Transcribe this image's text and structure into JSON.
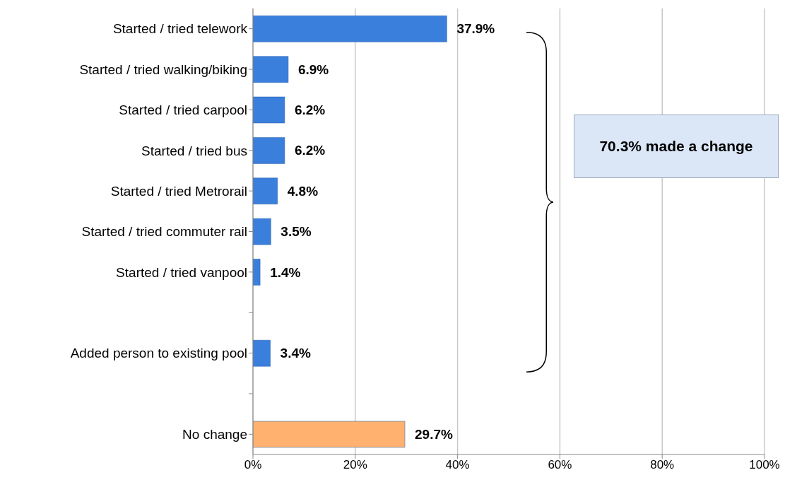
{
  "chart_data": {
    "type": "bar",
    "orientation": "horizontal",
    "categories": [
      "Started / tried telework",
      "Started / tried walking/biking",
      "Started / tried carpool",
      "Started / tried bus",
      "Started / tried Metrorail",
      "Started / tried commuter rail",
      "Started / tried vanpool",
      null,
      "Added person to existing pool",
      null,
      "No change"
    ],
    "values": [
      37.9,
      6.9,
      6.2,
      6.2,
      4.8,
      3.5,
      1.4,
      null,
      3.4,
      null,
      29.7
    ],
    "colors": [
      "#3a7fdc",
      "#3a7fdc",
      "#3a7fdc",
      "#3a7fdc",
      "#3a7fdc",
      "#3a7fdc",
      "#3a7fdc",
      "#3a7fdc",
      "#3a7fdc",
      "#3a7fdc",
      "#ffb26f"
    ],
    "value_labels": [
      "37.9%",
      "6.9%",
      "6.2%",
      "6.2%",
      "4.8%",
      "3.5%",
      "1.4%",
      null,
      "3.4%",
      null,
      "29.7%"
    ],
    "xlim": [
      0,
      100
    ],
    "xticks": [
      {
        "value": 0,
        "label": "0%"
      },
      {
        "value": 20,
        "label": "20%"
      },
      {
        "value": 40,
        "label": "40%"
      },
      {
        "value": 60,
        "label": "60%"
      },
      {
        "value": 80,
        "label": "80%"
      },
      {
        "value": 100,
        "label": "100%"
      }
    ],
    "grid": "x",
    "annotations": [
      "70.3% made a change"
    ]
  }
}
